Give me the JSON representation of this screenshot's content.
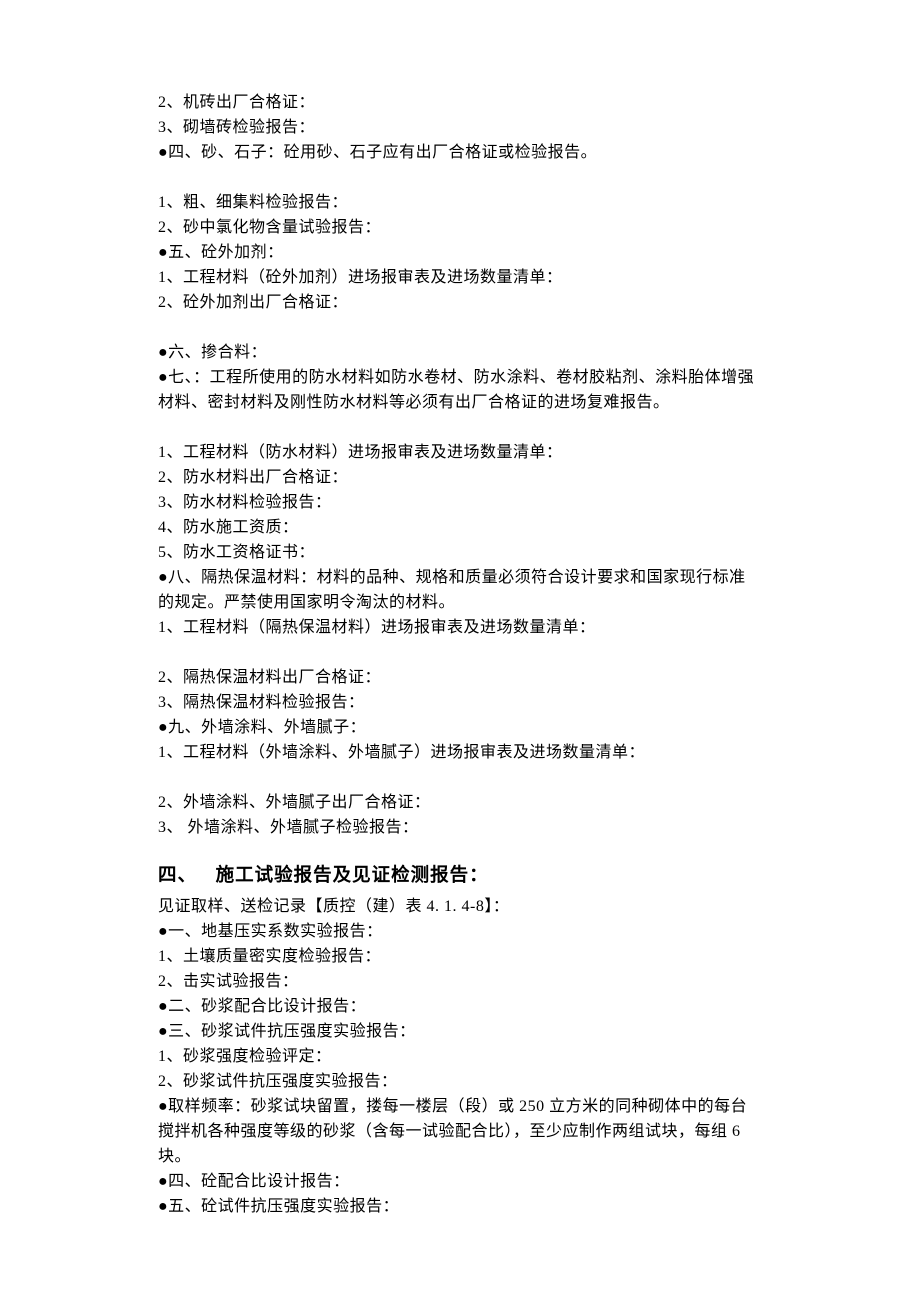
{
  "lines": [
    {
      "text": "2、机砖出厂合格证："
    },
    {
      "text": "3、砌墙砖检验报告："
    },
    {
      "text": "●四、砂、石子：砼用砂、石子应有出厂合格证或检验报告。"
    },
    {
      "blank": true
    },
    {
      "text": "1、粗、细集料检验报告："
    },
    {
      "text": "2、砂中氯化物含量试验报告："
    },
    {
      "text": "●五、砼外加剂："
    },
    {
      "text": "1、工程材料（砼外加剂）进场报审表及进场数量清单："
    },
    {
      "text": "2、砼外加剂出厂合格证："
    },
    {
      "blank": true
    },
    {
      "text": "●六、掺合料："
    },
    {
      "text": "●七、：工程所使用的防水材料如防水卷材、防水涂料、卷材胶粘剂、涂料胎体增强材料、密封材料及刚性防水材料等必须有出厂合格证的进场复难报告。"
    },
    {
      "blank": true
    },
    {
      "text": "1、工程材料（防水材料）进场报审表及进场数量清单："
    },
    {
      "text": "2、防水材料出厂合格证："
    },
    {
      "text": "3、防水材料检验报告："
    },
    {
      "text": "4、防水施工资质："
    },
    {
      "text": "5、防水工资格证书："
    },
    {
      "text": "●八、隔热保温材料：材料的品种、规格和质量必须符合设计要求和国家现行标准的规定。严禁使用国家明令淘汰的材料。"
    },
    {
      "text": "1、工程材料（隔热保温材料）进场报审表及进场数量清单："
    },
    {
      "blank": true
    },
    {
      "text": "2、隔热保温材料出厂合格证："
    },
    {
      "text": "3、隔热保温材料检验报告："
    },
    {
      "text": "●九、外墙涂料、外墙腻子："
    },
    {
      "text": "1、工程材料（外墙涂料、外墙腻子）进场报审表及进场数量清单："
    },
    {
      "blank": true
    },
    {
      "text": "2、外墙涂料、外墙腻子出厂合格证："
    },
    {
      "text": "3、 外墙涂料、外墙腻子检验报告："
    }
  ],
  "section4": {
    "num": "四、",
    "title": "施工试验报告及见证检测报告："
  },
  "lines2": [
    {
      "text": "见证取样、送检记录【质控（建）表 4. 1. 4-8】："
    },
    {
      "text": "●一、地基压实系数实验报告："
    },
    {
      "text": "1、土壤质量密实度检验报告："
    },
    {
      "text": "2、击实试验报告："
    },
    {
      "text": "●二、砂浆配合比设计报告："
    },
    {
      "text": "●三、砂浆试件抗压强度实验报告："
    },
    {
      "text": "1、砂浆强度检验评定："
    },
    {
      "text": "2、砂浆试件抗压强度实验报告："
    },
    {
      "text": "●取样频率：砂浆试块留置，搂每一楼层（段）或 250 立方米的同种砌体中的每台搅拌机各种强度等级的砂浆（含每一试验配合比），至少应制作两组试块，每组 6 块。"
    },
    {
      "text": "●四、砼配合比设计报告："
    },
    {
      "text": "●五、砼试件抗压强度实验报告："
    }
  ]
}
